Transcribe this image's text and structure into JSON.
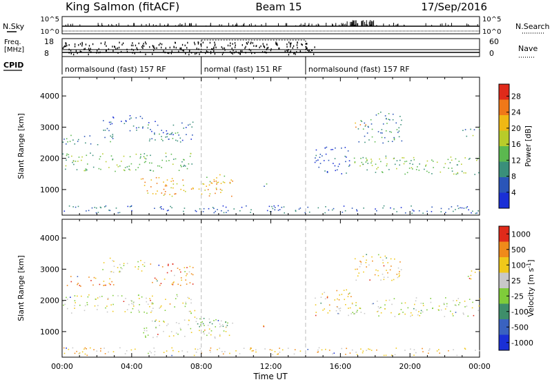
{
  "header": {
    "title": "King Salmon (fitACF)",
    "beam": "Beam 15",
    "date": "17/Sep/2016"
  },
  "strips": {
    "nsky_label": "N.Sky",
    "nsearch_label": "N.Search",
    "freq_label_top": "Freq.",
    "freq_label_bottom": "[MHz]",
    "nave_label": "Nave",
    "cpid_label": "CPID",
    "nsky_ticks": [
      "10^5",
      "10^0"
    ],
    "nsearch_ticks": [
      "10^5",
      "10^0"
    ],
    "freq_ticks": [
      "18",
      "8"
    ],
    "nave_ticks": [
      "60",
      "0"
    ],
    "cpid_segments": [
      {
        "label": "normalsound (fast) 157 RF",
        "start_h": 0,
        "end_h": 8
      },
      {
        "label": "normal (fast) 151 RF",
        "start_h": 8,
        "end_h": 14
      },
      {
        "label": "normalsound (fast) 157 RF",
        "start_h": 14,
        "end_h": 24
      }
    ]
  },
  "chart_data": [
    {
      "type": "heatmap",
      "title": "",
      "xlabel": "Time UT",
      "ylabel": "Slant Range [km]",
      "xlim": [
        0,
        24
      ],
      "ylim": [
        180,
        4600
      ],
      "x_ticks": [
        "00:00",
        "04:00",
        "08:00",
        "12:00",
        "16:00",
        "20:00",
        "00:00"
      ],
      "y_ticks": [
        1000,
        2000,
        3000,
        4000
      ],
      "colorbar": {
        "label": "Power [dB]",
        "ticks": [
          4,
          8,
          12,
          16,
          20,
          24,
          28
        ],
        "range": [
          0,
          31
        ],
        "colors": [
          "#1a2fd6",
          "#2a55b8",
          "#3a8f7a",
          "#5bb84f",
          "#b8cc2a",
          "#f0b814",
          "#f07818",
          "#e02a1a"
        ]
      },
      "regions": [
        {
          "t0": 0.0,
          "t1": 7.6,
          "r0": 1600,
          "r1": 2200,
          "level": 13
        },
        {
          "t0": 0.0,
          "t1": 3.0,
          "r0": 2450,
          "r1": 2800,
          "level": 9
        },
        {
          "t0": 2.3,
          "t1": 4.8,
          "r0": 2900,
          "r1": 3400,
          "level": 6
        },
        {
          "t0": 4.8,
          "t1": 7.5,
          "r0": 2500,
          "r1": 3200,
          "level": 7
        },
        {
          "t0": 5.4,
          "t1": 6.6,
          "r0": 2550,
          "r1": 2900,
          "level": 10
        },
        {
          "t0": 4.5,
          "t1": 9.8,
          "r0": 800,
          "r1": 1400,
          "level": 22
        },
        {
          "t0": 8.2,
          "t1": 9.6,
          "r0": 1200,
          "r1": 1500,
          "level": 18
        },
        {
          "t0": 11.5,
          "t1": 12.0,
          "r0": 1100,
          "r1": 1300,
          "level": 9
        },
        {
          "t0": 14.5,
          "t1": 16.6,
          "r0": 1500,
          "r1": 2400,
          "level": 5
        },
        {
          "t0": 16.6,
          "t1": 24.0,
          "r0": 1500,
          "r1": 2100,
          "level": 14
        },
        {
          "t0": 17.0,
          "t1": 19.5,
          "r0": 2500,
          "r1": 3500,
          "level": 9
        },
        {
          "t0": 16.8,
          "t1": 17.6,
          "r0": 2900,
          "r1": 3150,
          "level": 24
        },
        {
          "t0": 23.0,
          "t1": 24.0,
          "r0": 2700,
          "r1": 3000,
          "level": 12
        },
        {
          "t0": 0.0,
          "t1": 24.0,
          "r0": 250,
          "r1": 500,
          "level": 6
        }
      ]
    },
    {
      "type": "heatmap",
      "title": "",
      "xlabel": "Time UT",
      "ylabel": "Slant Range [km]",
      "xlim": [
        0,
        24
      ],
      "ylim": [
        180,
        4600
      ],
      "x_ticks": [
        "00:00",
        "04:00",
        "08:00",
        "12:00",
        "16:00",
        "20:00",
        "00:00"
      ],
      "y_ticks": [
        1000,
        2000,
        3000,
        4000
      ],
      "colorbar": {
        "label": "Velocity [m s^-1]",
        "ticks": [
          "1000",
          "500",
          "100",
          "25",
          "-25",
          "-100",
          "-500",
          "-1000"
        ],
        "colors": [
          "#1a2fd6",
          "#3a62c0",
          "#3e8e6a",
          "#7fcc3a",
          "#c8c8c8",
          "#f0c81a",
          "#f08a1a",
          "#e02a1a"
        ]
      },
      "regions": [
        {
          "t0": 0.0,
          "t1": 7.6,
          "r0": 1600,
          "r1": 2200,
          "level": 4
        },
        {
          "t0": 0.0,
          "t1": 3.0,
          "r0": 2450,
          "r1": 2800,
          "level": 6
        },
        {
          "t0": 2.3,
          "t1": 4.8,
          "r0": 2900,
          "r1": 3400,
          "level": 4
        },
        {
          "t0": 4.8,
          "t1": 7.5,
          "r0": 2500,
          "r1": 3200,
          "level": 6
        },
        {
          "t0": 4.5,
          "t1": 9.8,
          "r0": 800,
          "r1": 1400,
          "level": 4
        },
        {
          "t0": 7.6,
          "t1": 9.8,
          "r0": 1100,
          "r1": 1500,
          "level": 3
        },
        {
          "t0": 11.5,
          "t1": 12.0,
          "r0": 1100,
          "r1": 1300,
          "level": 6
        },
        {
          "t0": 14.5,
          "t1": 16.6,
          "r0": 1500,
          "r1": 2400,
          "level": 5
        },
        {
          "t0": 16.6,
          "t1": 24.0,
          "r0": 1500,
          "r1": 2100,
          "level": 4
        },
        {
          "t0": 16.8,
          "t1": 19.5,
          "r0": 2600,
          "r1": 3500,
          "level": 5
        },
        {
          "t0": 23.0,
          "t1": 24.0,
          "r0": 2700,
          "r1": 3000,
          "level": 6
        },
        {
          "t0": 0.0,
          "t1": 24.0,
          "r0": 250,
          "r1": 500,
          "level": 5
        }
      ]
    }
  ]
}
